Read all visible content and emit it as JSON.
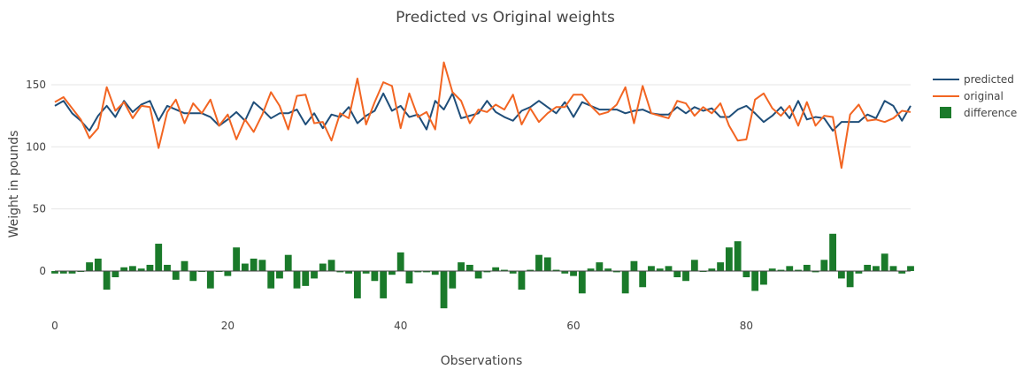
{
  "chart_data": {
    "type": "line",
    "title": "Predicted vs Original weights",
    "xlabel": "Observations",
    "ylabel": "Weight in pounds",
    "xlim": [
      0,
      99
    ],
    "ylim": [
      -32,
      172
    ],
    "xticks": [
      0,
      20,
      40,
      60,
      80
    ],
    "yticks": [
      0,
      50,
      100,
      150
    ],
    "grid": true,
    "legend_position": "top-right",
    "x": [
      0,
      1,
      2,
      3,
      4,
      5,
      6,
      7,
      8,
      9,
      10,
      11,
      12,
      13,
      14,
      15,
      16,
      17,
      18,
      19,
      20,
      21,
      22,
      23,
      24,
      25,
      26,
      27,
      28,
      29,
      30,
      31,
      32,
      33,
      34,
      35,
      36,
      37,
      38,
      39,
      40,
      41,
      42,
      43,
      44,
      45,
      46,
      47,
      48,
      49,
      50,
      51,
      52,
      53,
      54,
      55,
      56,
      57,
      58,
      59,
      60,
      61,
      62,
      63,
      64,
      65,
      66,
      67,
      68,
      69,
      70,
      71,
      72,
      73,
      74,
      75,
      76,
      77,
      78,
      79,
      80,
      81,
      82,
      83,
      84,
      85,
      86,
      87,
      88,
      89,
      90,
      91,
      92,
      93,
      94,
      95,
      96,
      97,
      98,
      99
    ],
    "series": [
      {
        "name": "predicted",
        "type": "line",
        "color": "#1f4e79",
        "values": [
          133,
          137,
          127,
          121,
          113,
          125,
          133,
          124,
          137,
          128,
          134,
          137,
          121,
          133,
          130,
          127,
          127,
          127,
          124,
          117,
          122,
          128,
          121,
          136,
          130,
          123,
          127,
          127,
          130,
          118,
          127,
          115,
          126,
          124,
          132,
          119,
          125,
          129,
          143,
          129,
          133,
          124,
          126,
          114,
          137,
          130,
          143,
          123,
          125,
          127,
          137,
          128,
          124,
          121,
          129,
          132,
          137,
          132,
          127,
          136,
          124,
          136,
          133,
          130,
          130,
          130,
          127,
          129,
          130,
          127,
          126,
          126,
          132,
          127,
          132,
          129,
          131,
          124,
          124,
          130,
          133,
          127,
          120,
          125,
          132,
          123,
          137,
          122,
          124,
          123,
          113,
          120,
          120,
          120,
          126,
          123,
          137,
          133,
          121,
          133
        ]
      },
      {
        "name": "original",
        "type": "line",
        "color": "#f26522",
        "values": [
          136,
          140,
          131,
          122,
          107,
          115,
          148,
          129,
          136,
          123,
          133,
          132,
          99,
          128,
          138,
          119,
          135,
          127,
          138,
          117,
          126,
          106,
          122,
          112,
          126,
          144,
          133,
          114,
          141,
          142,
          119,
          120,
          105,
          127,
          123,
          155,
          118,
          136,
          152,
          149,
          115,
          143,
          124,
          128,
          114,
          168,
          144,
          137,
          119,
          130,
          128,
          134,
          130,
          142,
          118,
          131,
          120,
          127,
          132,
          132,
          142,
          142,
          133,
          126,
          128,
          134,
          148,
          119,
          149,
          127,
          125,
          123,
          137,
          135,
          125,
          132,
          127,
          135,
          117,
          105,
          106,
          138,
          143,
          131,
          125,
          133,
          117,
          136,
          117,
          125,
          124,
          83,
          126,
          134,
          121,
          122,
          120,
          123,
          129,
          128
        ]
      },
      {
        "name": "difference",
        "type": "bar",
        "color": "#1a7a2a",
        "values": [
          -2,
          -2,
          -2,
          0,
          7,
          10,
          -15,
          -5,
          3,
          4,
          2,
          5,
          22,
          5,
          -7,
          8,
          -8,
          0,
          -14,
          0,
          -4,
          19,
          6,
          10,
          9,
          -14,
          -6,
          13,
          -14,
          -12,
          -6,
          6,
          9,
          -1,
          -2,
          -22,
          -2,
          -8,
          -22,
          -3,
          15,
          -10,
          -1,
          -1,
          -3,
          -30,
          -14,
          7,
          5,
          -6,
          -1,
          3,
          1,
          -2,
          -15,
          1,
          13,
          11,
          1,
          -2,
          -4,
          -18,
          2,
          7,
          2,
          -1,
          -18,
          8,
          -13,
          4,
          2,
          4,
          -5,
          -8,
          9,
          0,
          2,
          7,
          19,
          24,
          -5,
          -16,
          -11,
          2,
          1,
          4,
          1,
          5,
          -1,
          9,
          30,
          -6,
          -13,
          -2,
          5,
          4,
          14,
          4,
          -2,
          4
        ]
      }
    ]
  }
}
